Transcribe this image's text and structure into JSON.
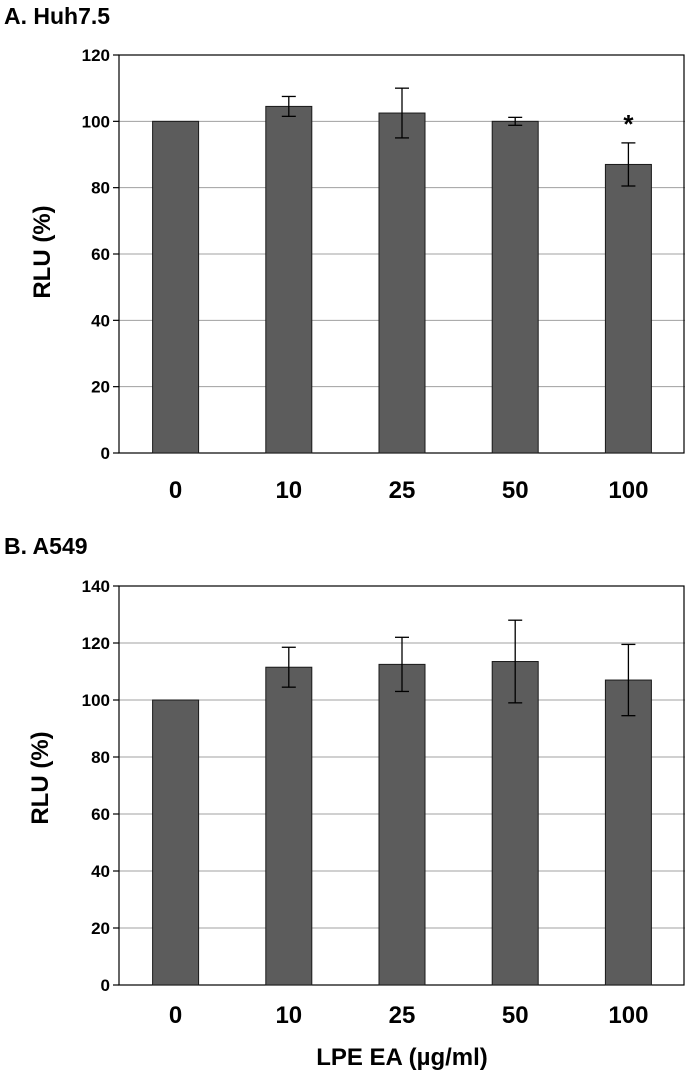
{
  "chart_data": [
    {
      "type": "bar",
      "title": "A. Huh7.5",
      "ylabel": "RLU (%)",
      "xlabel": "",
      "categories": [
        "0",
        "10",
        "25",
        "50",
        "100"
      ],
      "values": [
        100,
        104.5,
        102.5,
        100,
        87
      ],
      "errors": [
        0,
        3,
        7.5,
        1.2,
        6.5
      ],
      "annotations": [
        "",
        "",
        "",
        "",
        "*"
      ],
      "ylim": [
        0,
        120
      ],
      "yticks": [
        0,
        20,
        40,
        60,
        80,
        100,
        120
      ],
      "grid": true,
      "bar_color": "#5c5c5c"
    },
    {
      "type": "bar",
      "title": "B. A549",
      "ylabel": "RLU (%)",
      "xlabel": "LPE EA (µg/ml)",
      "categories": [
        "0",
        "10",
        "25",
        "50",
        "100"
      ],
      "values": [
        100,
        111.5,
        112.5,
        113.5,
        107
      ],
      "errors": [
        0,
        7,
        9.5,
        14.5,
        12.5
      ],
      "annotations": [
        "",
        "",
        "",
        "",
        ""
      ],
      "ylim": [
        0,
        140
      ],
      "yticks": [
        0,
        20,
        40,
        60,
        80,
        100,
        120,
        140
      ],
      "grid": true,
      "bar_color": "#5c5c5c"
    }
  ]
}
